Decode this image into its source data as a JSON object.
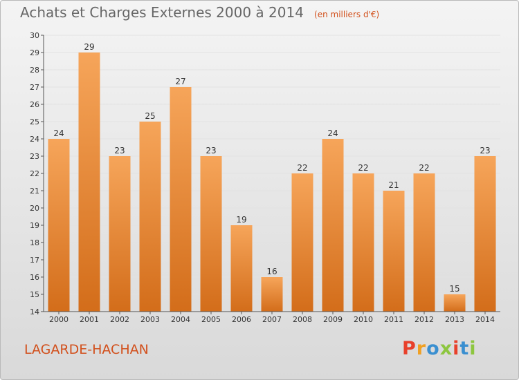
{
  "header": {
    "title": "Achats et Charges Externes 2000 à 2014",
    "subtitle": "(en milliers d'€)"
  },
  "footer": {
    "commune": "LAGARDE-HACHAN",
    "logo": {
      "text": "Proxiti",
      "colors": [
        "#e8402b",
        "#f0a023",
        "#3a8fd0",
        "#8dc63f",
        "#e8402b",
        "#3a8fd0",
        "#8dc63f"
      ]
    }
  },
  "colors": {
    "bar_top": "#f6a55a",
    "bar_bottom": "#d36d1a",
    "accent": "#d2501c"
  },
  "chart_data": {
    "type": "bar",
    "title": "Achats et Charges Externes 2000 à 2014",
    "subtitle": "(en milliers d'€)",
    "xlabel": "",
    "ylabel": "",
    "categories": [
      "2000",
      "2001",
      "2002",
      "2003",
      "2004",
      "2005",
      "2006",
      "2007",
      "2008",
      "2009",
      "2010",
      "2011",
      "2012",
      "2013",
      "2014"
    ],
    "values": [
      24,
      29,
      23,
      25,
      27,
      23,
      19,
      16,
      22,
      24,
      22,
      21,
      22,
      15,
      23
    ],
    "ylim": [
      14,
      30
    ],
    "yticks": [
      14,
      15,
      16,
      17,
      18,
      19,
      20,
      21,
      22,
      23,
      24,
      25,
      26,
      27,
      28,
      29,
      30
    ],
    "grid": true,
    "data_labels": true
  }
}
